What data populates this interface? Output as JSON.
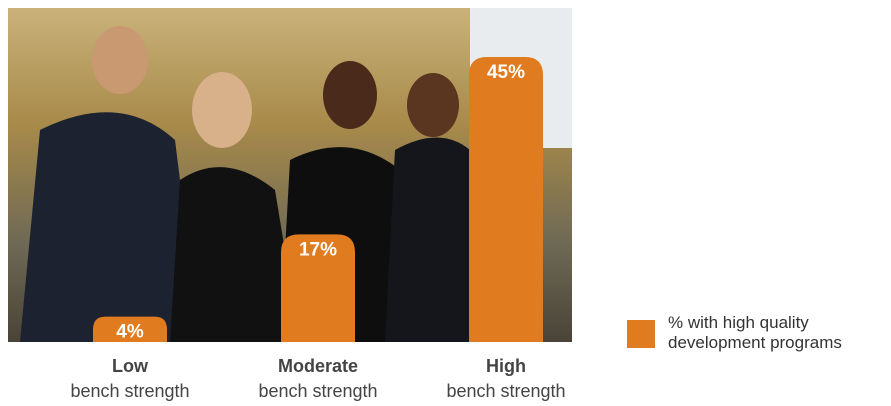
{
  "chart_data": {
    "type": "bar",
    "categories": [
      [
        "Low",
        "bench strength"
      ],
      [
        "Moderate",
        "bench strength"
      ],
      [
        "High",
        "bench strength"
      ]
    ],
    "series": [
      {
        "name": "% with high quality development programs",
        "color": "#e07b20",
        "values": [
          4,
          17,
          45
        ],
        "value_labels": [
          "4%",
          "17%",
          "45%"
        ]
      }
    ]
  }
}
